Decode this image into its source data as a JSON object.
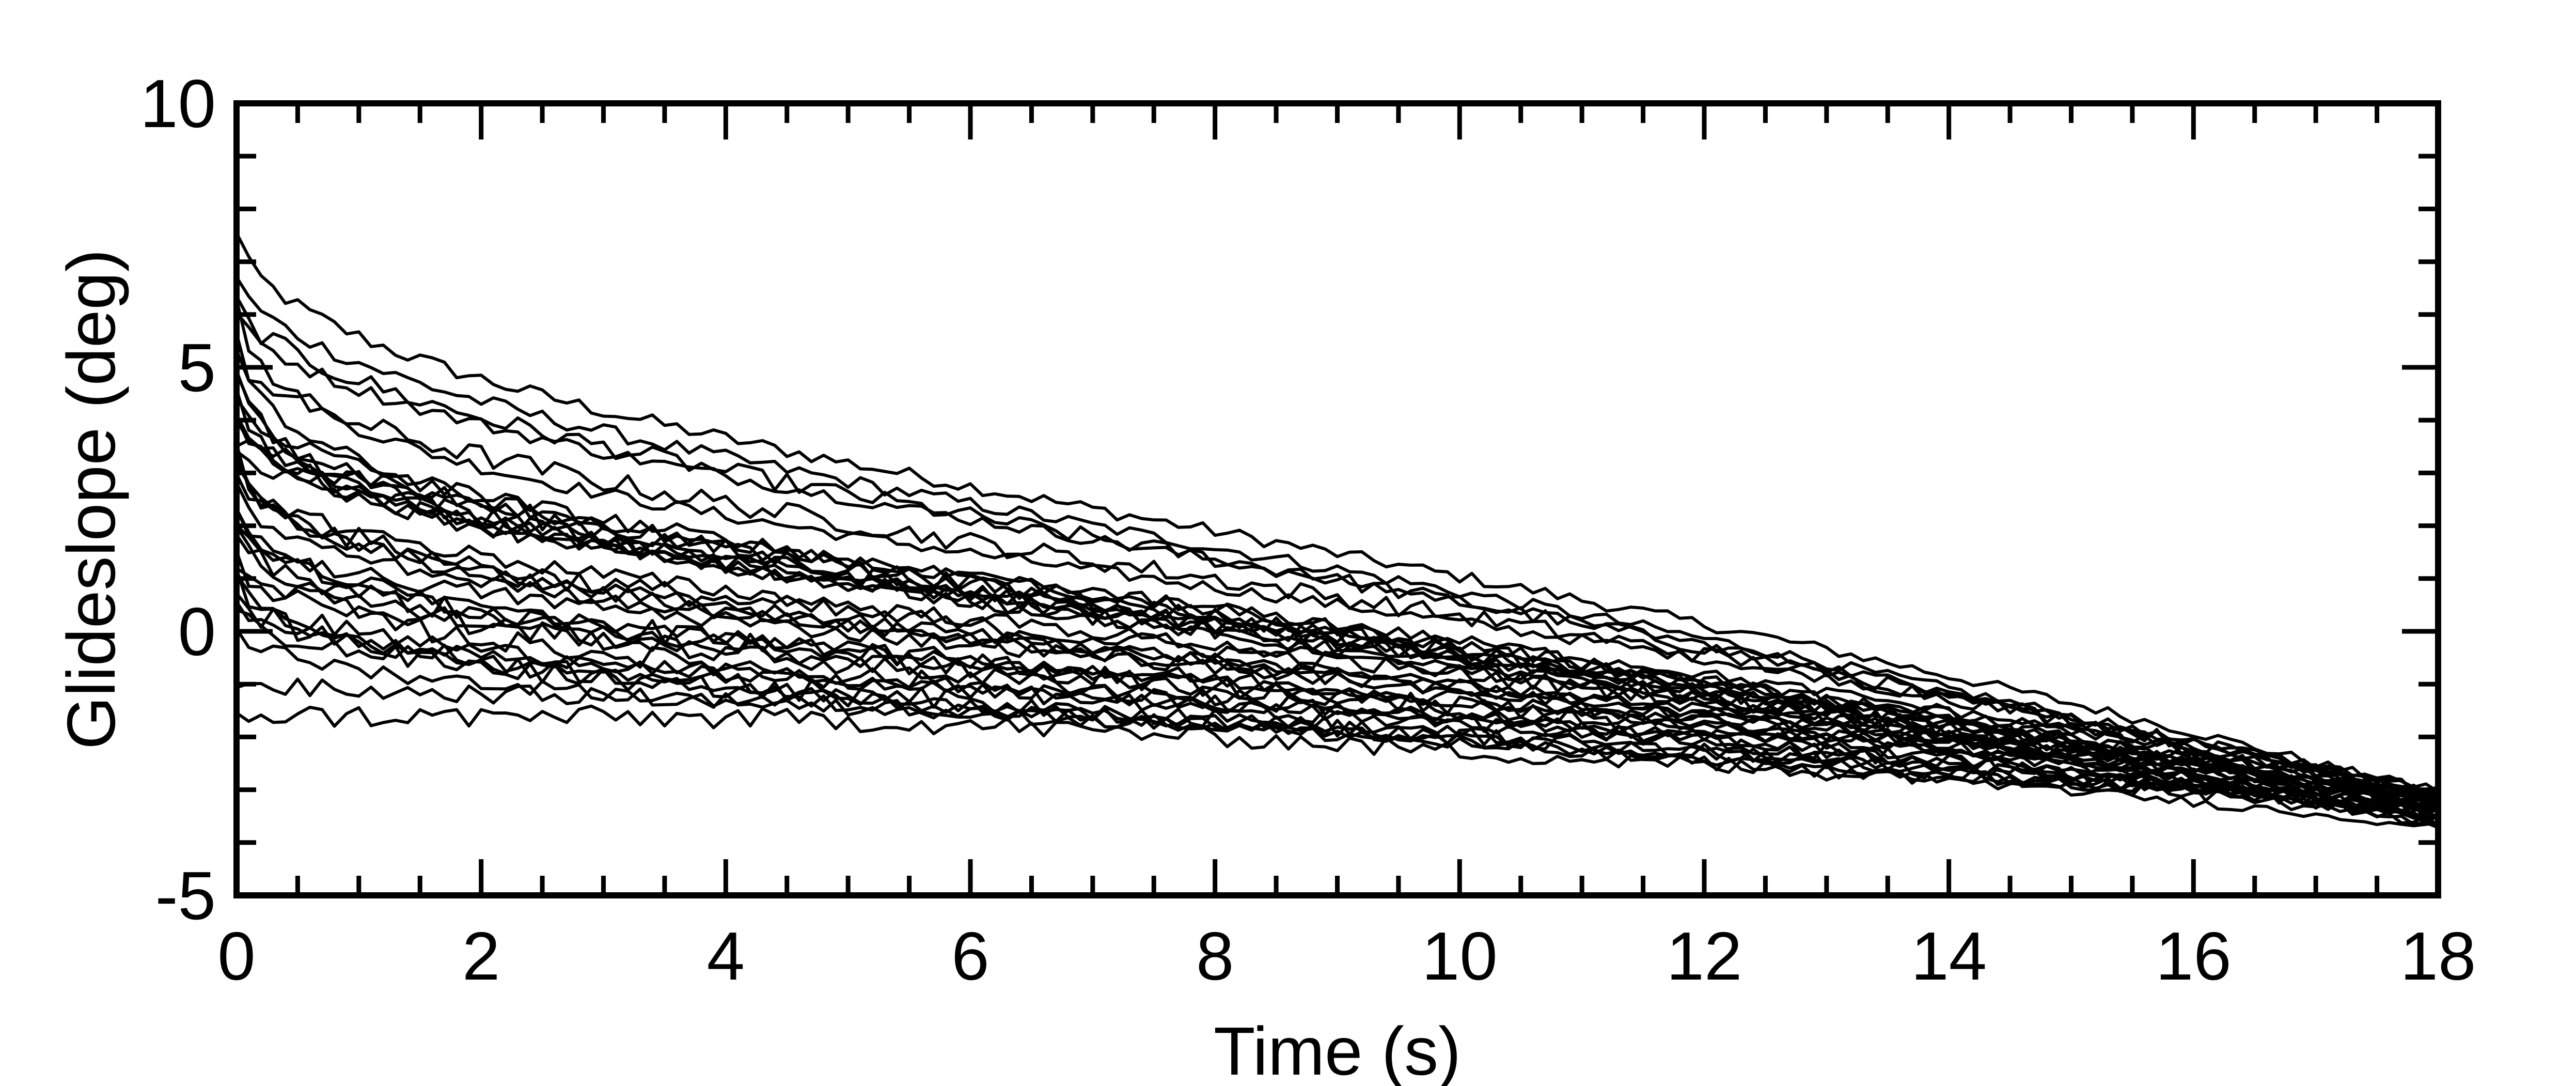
{
  "chart_data": {
    "type": "line",
    "xlabel": "Time (s)",
    "ylabel": "Glideslope (deg)",
    "xlim": [
      0,
      18
    ],
    "ylim": [
      -5,
      10
    ],
    "x_major_ticks": [
      0,
      2,
      4,
      6,
      8,
      10,
      12,
      14,
      16,
      18
    ],
    "x_minor_step": 0.5,
    "y_major_ticks": [
      -5,
      0,
      5,
      10
    ],
    "y_minor_step": 1,
    "grid": false,
    "line_color": "#000000",
    "x_sample_step": 0.1,
    "series": [
      {
        "start": 7.5,
        "end": -3.1
      },
      {
        "start": 6.7,
        "end": -3.3
      },
      {
        "start": 6.4,
        "end": -3.0
      },
      {
        "start": 6.2,
        "end": -3.4
      },
      {
        "start": 6.0,
        "end": -3.2
      },
      {
        "start": 5.6,
        "end": -3.5
      },
      {
        "start": 5.3,
        "end": -3.1
      },
      {
        "start": 5.1,
        "end": -3.6
      },
      {
        "start": 4.8,
        "end": -3.3
      },
      {
        "start": 4.6,
        "end": -3.0
      },
      {
        "start": 4.4,
        "end": -3.4
      },
      {
        "start": 4.2,
        "end": -3.2
      },
      {
        "start": 4.0,
        "end": -3.7
      },
      {
        "start": 3.9,
        "end": -3.1
      },
      {
        "start": 3.7,
        "end": -3.5
      },
      {
        "start": 3.5,
        "end": -3.3
      },
      {
        "start": 3.4,
        "end": -3.0
      },
      {
        "start": 3.2,
        "end": -3.6
      },
      {
        "start": 3.0,
        "end": -3.2
      },
      {
        "start": 2.9,
        "end": -3.4
      },
      {
        "start": 2.7,
        "end": -3.1
      },
      {
        "start": 2.5,
        "end": -3.5
      },
      {
        "start": 2.4,
        "end": -3.3
      },
      {
        "start": 2.2,
        "end": -3.0
      },
      {
        "start": 2.0,
        "end": -3.6
      },
      {
        "start": 1.8,
        "end": -3.2
      },
      {
        "start": 1.6,
        "end": -3.4
      },
      {
        "start": 1.4,
        "end": -3.1
      },
      {
        "start": 1.2,
        "end": -3.7
      },
      {
        "start": 1.0,
        "end": -3.3
      },
      {
        "start": 0.8,
        "end": -3.5
      },
      {
        "start": 0.6,
        "end": -3.0
      },
      {
        "start": 0.4,
        "end": -3.4
      },
      {
        "start": 0.1,
        "end": -3.2
      },
      {
        "start": -0.9,
        "end": -3.3
      },
      {
        "start": -1.5,
        "end": -3.1
      }
    ]
  }
}
